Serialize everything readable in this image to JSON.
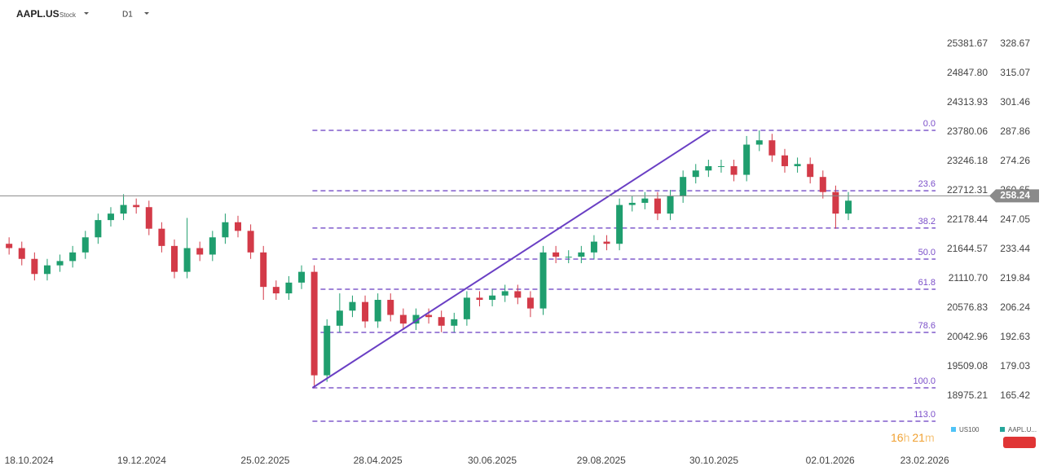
{
  "chart_data": {
    "type": "candlestick",
    "symbol": "AAPL.US",
    "asset_type": "Stock",
    "timeframe": "D1",
    "x": [
      "07.10.2024",
      "14.10.2024",
      "21.10.2024",
      "28.10.2024",
      "04.11.2024",
      "11.11.2024",
      "18.11.2024",
      "25.11.2024",
      "02.12.2024",
      "09.12.2024",
      "16.12.2024",
      "23.12.2024",
      "30.12.2024",
      "06.01.2025",
      "13.01.2025",
      "20.01.2025",
      "27.01.2025",
      "03.02.2025",
      "10.02.2025",
      "17.02.2025",
      "24.02.2025",
      "03.03.2025",
      "10.03.2025",
      "17.03.2025",
      "24.03.2025",
      "31.03.2025",
      "07.04.2025",
      "14.04.2025",
      "21.04.2025",
      "28.04.2025",
      "05.05.2025",
      "12.05.2025",
      "19.05.2025",
      "26.05.2025",
      "02.06.2025",
      "09.06.2025",
      "16.06.2025",
      "23.06.2025",
      "30.06.2025",
      "07.07.2025",
      "14.07.2025",
      "21.07.2025",
      "28.07.2025",
      "04.08.2025",
      "11.08.2025",
      "18.08.2025",
      "25.08.2025",
      "01.09.2025",
      "08.09.2025",
      "15.09.2025",
      "22.09.2025",
      "29.09.2025",
      "06.10.2025",
      "13.10.2025",
      "20.10.2025",
      "27.10.2025",
      "03.11.2025",
      "10.11.2025",
      "17.11.2025",
      "24.11.2025",
      "01.12.2025",
      "08.12.2025",
      "15.12.2025",
      "22.12.2025",
      "29.12.2025",
      "05.01.2026",
      "12.01.2026"
    ],
    "open": [
      236,
      234,
      229,
      222,
      226,
      228,
      232,
      239,
      247,
      250,
      254,
      253,
      243,
      235,
      223,
      234,
      231,
      239,
      246,
      242,
      232,
      216,
      213,
      218,
      223,
      175,
      198,
      205,
      209,
      200,
      210,
      203,
      199,
      203,
      202,
      198,
      201,
      211,
      210,
      212,
      214,
      211,
      206,
      232,
      230,
      230,
      232,
      237,
      236,
      254,
      255,
      257,
      250,
      258,
      267,
      270,
      272,
      272,
      268,
      282,
      284,
      277,
      272,
      273,
      267,
      260,
      250
    ],
    "high": [
      239,
      237,
      232,
      229,
      231,
      235,
      242,
      250,
      253,
      259,
      257,
      256,
      246,
      238,
      248,
      237,
      242,
      250,
      249,
      245,
      235,
      219,
      221,
      226,
      226,
      201,
      213,
      212,
      212,
      213,
      213,
      206,
      206,
      206,
      205,
      204,
      214,
      214,
      215,
      217,
      217,
      214,
      235,
      235,
      233,
      235,
      240,
      240,
      257,
      258,
      260,
      260,
      261,
      270,
      273,
      275,
      275,
      275,
      286,
      288.6,
      287,
      280,
      276,
      276,
      270,
      263,
      260
    ],
    "low": [
      231,
      226,
      219,
      219,
      223,
      225,
      229,
      236,
      244,
      247,
      250,
      240,
      232,
      220,
      220,
      228,
      228,
      236,
      239,
      229,
      210,
      210,
      210,
      215,
      169,
      172,
      195,
      202,
      197,
      197,
      200,
      196,
      196,
      199,
      195,
      195,
      198,
      207,
      207,
      209,
      208,
      202,
      203,
      227,
      227,
      227,
      229,
      233,
      233,
      251,
      252,
      247,
      247,
      255,
      264,
      267,
      269,
      265,
      265,
      279,
      274,
      269,
      269,
      264,
      257,
      243,
      247
    ],
    "close": [
      234,
      229,
      222,
      226,
      228,
      232,
      239,
      247,
      250,
      254,
      253,
      243,
      235,
      223,
      234,
      231,
      239,
      246,
      242,
      232,
      216,
      213,
      218,
      223,
      175,
      198,
      205,
      209,
      200,
      210,
      203,
      199,
      203,
      202,
      198,
      201,
      211,
      210,
      212,
      214,
      211,
      206,
      232,
      230,
      230,
      232,
      237,
      236,
      254,
      255,
      257,
      250,
      258,
      267,
      270,
      272,
      272,
      268,
      282,
      284,
      277,
      272,
      273,
      267,
      260,
      250,
      256
    ],
    "up_color": "#1f9e6e",
    "down_color": "#d33a48",
    "xlim": [
      "02.10.2024",
      "01.03.2026"
    ],
    "xticks": [
      "18.10.2024",
      "19.12.2024",
      "25.02.2025",
      "28.04.2025",
      "30.06.2025",
      "29.08.2025",
      "30.10.2025",
      "02.01.2026",
      "23.02.2026"
    ],
    "ylim": [
      141.23,
      337.74
    ],
    "yticks": [
      328.67,
      315.07,
      301.46,
      287.86,
      274.26,
      260.65,
      247.05,
      233.44,
      219.84,
      206.24,
      192.63,
      179.03,
      165.42
    ],
    "y2lim": [
      18026.1,
      25737.6
    ],
    "y2ticks": [
      25381.67,
      {
        "value": 24847.8,
        "label": "24847.80"
      },
      24313.93,
      23780.06,
      23246.18,
      22712.31,
      22178.44,
      21644.57,
      {
        "value": 21110.7,
        "label": "21110.70"
      },
      20576.83,
      20042.96,
      19509.08,
      18975.21
    ],
    "current_price": 258.24,
    "trendline": {
      "x": [
        "23.03.2025",
        "28.10.2025"
      ],
      "y": [
        169.2,
        288.6
      ],
      "color": "#6a3fc4"
    },
    "fib": {
      "color": "#6a3fc4",
      "levels": [
        {
          "label": "0.0",
          "price": 288.6
        },
        {
          "label": "23.6",
          "price": 260.6
        },
        {
          "label": "38.2",
          "price": 243.3
        },
        {
          "label": "50.0",
          "price": 228.9
        },
        {
          "label": "61.8",
          "price": 214.9
        },
        {
          "label": "78.6",
          "price": 194.9
        },
        {
          "label": "100.0",
          "price": 169.2
        },
        {
          "label": "113.0",
          "price": 153.7
        }
      ]
    },
    "legend": [
      {
        "name": "US100",
        "color": "#4fc3f7"
      },
      {
        "name": "AAPL.U...",
        "color": "#26a69a"
      }
    ],
    "countdown": {
      "hours": "16",
      "hours_unit": "h",
      "minutes": "21",
      "minutes_unit": "m"
    }
  }
}
